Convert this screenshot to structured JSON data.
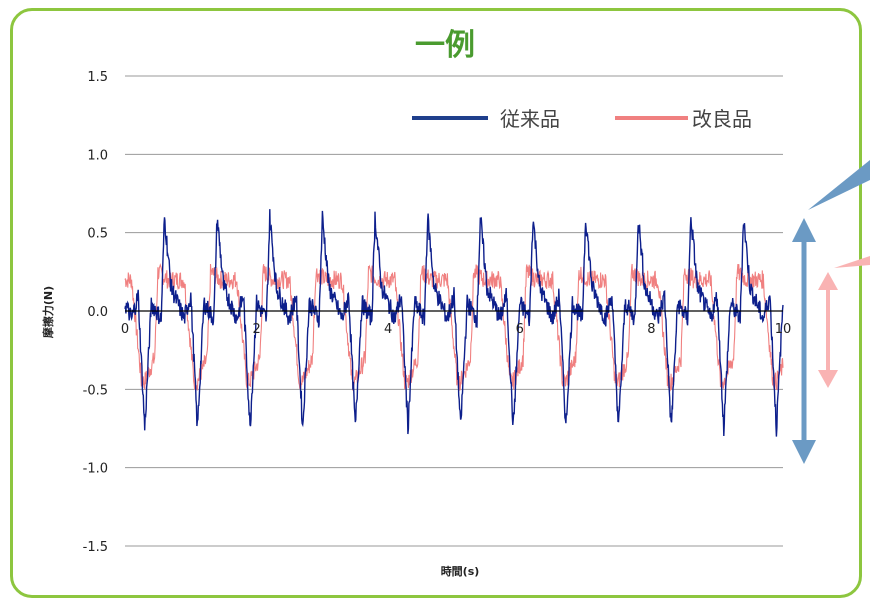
{
  "chart_data": {
    "type": "line",
    "title": "一例",
    "xlabel": "時間(s)",
    "ylabel": "摩擦力(N)",
    "xlim": [
      0,
      10
    ],
    "ylim": [
      -1.5,
      1.5
    ],
    "x_ticks": [
      "0",
      "2",
      "4",
      "6",
      "8",
      "10"
    ],
    "y_ticks": [
      "1.5",
      "1.0",
      "0.5",
      "0.0",
      "-0.5",
      "-1.0",
      "-1.5"
    ],
    "grid": true,
    "legend": "top-right",
    "series": [
      {
        "name": "従来品",
        "color": "#0d1f8c",
        "period": 0.8,
        "x": [
          0,
          0.1,
          0.2,
          0.3,
          0.4,
          0.55,
          0.6,
          0.7,
          0.85
        ],
        "values": [
          0.05,
          -0.05,
          0.1,
          -0.75,
          0.05,
          -0.05,
          0.6,
          0.15,
          0.0
        ],
        "wave_max": 0.68,
        "wave_min": -0.97
      },
      {
        "name": "改良品",
        "color": "#f08080",
        "period": 0.8,
        "x": [
          0,
          0.1,
          0.25,
          0.3,
          0.45,
          0.5,
          0.65
        ],
        "values": [
          0.2,
          0.2,
          -0.45,
          -0.45,
          -0.3,
          0.25,
          0.2
        ],
        "wave_max": 0.3,
        "wave_min": -0.55
      }
    ]
  },
  "annotations": {
    "blue_arrow_color": "#6b9ac4",
    "pink_arrow_color": "#f9b3b3"
  }
}
